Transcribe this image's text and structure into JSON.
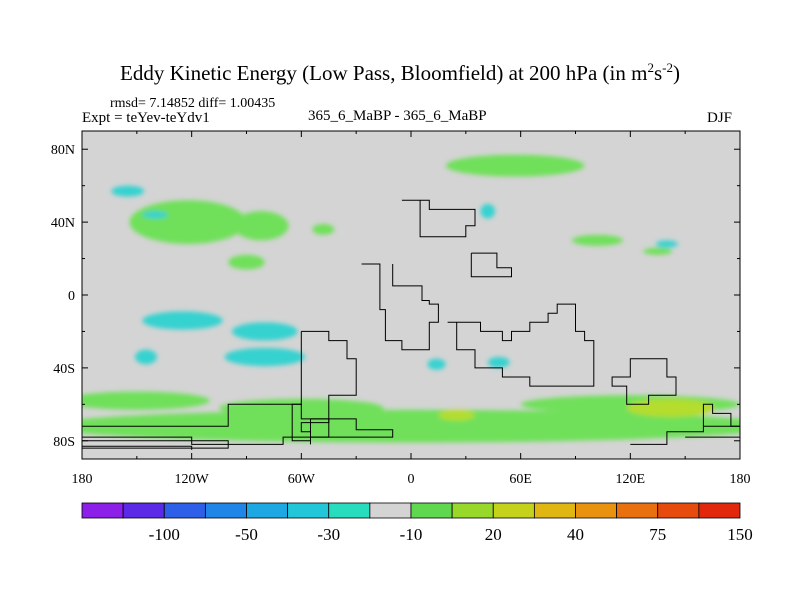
{
  "title": {
    "main": "Eddy Kinetic Energy (Low Pass, Bloomfield) at 200 hPa (in m",
    "sup1": "2",
    "mid": "s",
    "sup2": "-2",
    "end": ")"
  },
  "stats": "rmsd= 7.14852 diff= 1.00435",
  "expt": "Expt = teYev-teYdv1",
  "runs": "365_6_MaBP - 365_6_MaBP",
  "season": "DJF",
  "colors": {
    "background_field": "#d4d4d4",
    "positive_low": "#6fe05a",
    "positive_mid": "#b4dd2f",
    "negative_low": "#35d2d0",
    "coastline": "#000000"
  },
  "chart_data": {
    "type": "heatmap",
    "title": "Eddy Kinetic Energy (Low Pass, Bloomfield) at 200 hPa (in m^2 s^-2)",
    "projection": "cylindrical equidistant",
    "x_range": [
      -180,
      180
    ],
    "y_range": [
      -90,
      90
    ],
    "x_ticks": [
      {
        "value": -180,
        "label": "180"
      },
      {
        "value": -120,
        "label": "120W"
      },
      {
        "value": -60,
        "label": "60W"
      },
      {
        "value": 0,
        "label": "0"
      },
      {
        "value": 60,
        "label": "60E"
      },
      {
        "value": 120,
        "label": "120E"
      },
      {
        "value": 180,
        "label": "180"
      }
    ],
    "y_ticks": [
      {
        "value": 80,
        "label": "80N"
      },
      {
        "value": 40,
        "label": "40N"
      },
      {
        "value": 0,
        "label": "0"
      },
      {
        "value": -40,
        "label": "40S"
      },
      {
        "value": -80,
        "label": "80S"
      }
    ],
    "colorbar": {
      "colors": [
        "#8c1fe8",
        "#5a2ae6",
        "#2e5fe8",
        "#1f86e8",
        "#1ea8e3",
        "#22c6d9",
        "#28ddbd",
        "#d4d4d4",
        "#5fd84f",
        "#98d82b",
        "#c4d21c",
        "#e0b612",
        "#e99210",
        "#e8700e",
        "#e64a0c",
        "#e2280c"
      ],
      "labels": [
        {
          "between": [
            1,
            2
          ],
          "text": "-100"
        },
        {
          "between": [
            3,
            4
          ],
          "text": "-50"
        },
        {
          "between": [
            5,
            6
          ],
          "text": "-30"
        },
        {
          "between": [
            7,
            8
          ],
          "text": "-10"
        },
        {
          "between": [
            9,
            10
          ],
          "text": "20"
        },
        {
          "between": [
            11,
            12
          ],
          "text": "40"
        },
        {
          "between": [
            13,
            14
          ],
          "text": "75"
        },
        {
          "between": [
            15,
            16
          ],
          "text": "150"
        }
      ]
    },
    "regions": [
      {
        "name": "arctic-band-east",
        "level": "positive_low",
        "lon": 57,
        "lat": 71,
        "rlon": 38,
        "rlat": 6
      },
      {
        "name": "north-pacific-band",
        "level": "positive_low",
        "lon": -122,
        "lat": 40,
        "rlon": 32,
        "rlat": 12
      },
      {
        "name": "north-atlantic-green",
        "level": "positive_low",
        "lon": -82,
        "lat": 38,
        "rlon": 15,
        "rlat": 8
      },
      {
        "name": "subtropic-west-blob",
        "level": "positive_low",
        "lon": -90,
        "lat": 18,
        "rlon": 10,
        "rlat": 4
      },
      {
        "name": "europe-north-blob",
        "level": "positive_low",
        "lon": -48,
        "lat": 36,
        "rlon": 6,
        "rlat": 3
      },
      {
        "name": "asia-jet-green",
        "level": "positive_low",
        "lon": 102,
        "lat": 30,
        "rlon": 14,
        "rlat": 3
      },
      {
        "name": "west-pacific-green",
        "level": "positive_low",
        "lon": 135,
        "lat": 24,
        "rlon": 8,
        "rlat": 2
      },
      {
        "name": "antarctic-ring",
        "level": "positive_low",
        "lon": 0,
        "lat": -72,
        "rlon": 200,
        "rlat": 9
      },
      {
        "name": "southern-ocean-west",
        "level": "positive_low",
        "lon": -150,
        "lat": -58,
        "rlon": 40,
        "rlat": 5
      },
      {
        "name": "southern-ocean-mid",
        "level": "positive_low",
        "lon": -60,
        "lat": -62,
        "rlon": 45,
        "rlat": 5
      },
      {
        "name": "southern-ocean-east",
        "level": "positive_low",
        "lon": 120,
        "lat": -60,
        "rlon": 60,
        "rlat": 5
      },
      {
        "name": "indian-ocean-yellow",
        "level": "positive_mid",
        "lon": 142,
        "lat": -62,
        "rlon": 24,
        "rlat": 5
      },
      {
        "name": "south-atlantic-yellow",
        "level": "positive_mid",
        "lon": 25,
        "lat": -66,
        "rlon": 10,
        "rlat": 3
      },
      {
        "name": "north-pacific-cyan",
        "level": "negative_low",
        "lon": -155,
        "lat": 57,
        "rlon": 9,
        "rlat": 3
      },
      {
        "name": "north-pacific-cyan-2",
        "level": "negative_low",
        "lon": -140,
        "lat": 44,
        "rlon": 7,
        "rlat": 2
      },
      {
        "name": "north-atlantic-cyan",
        "level": "negative_low",
        "lon": 42,
        "lat": 46,
        "rlon": 4,
        "rlat": 4
      },
      {
        "name": "asia-cyan",
        "level": "negative_low",
        "lon": 140,
        "lat": 28,
        "rlon": 6,
        "rlat": 2
      },
      {
        "name": "south-pacific-cyan",
        "level": "negative_low",
        "lon": -125,
        "lat": -14,
        "rlon": 22,
        "rlat": 5
      },
      {
        "name": "south-pacific-cyan-2",
        "level": "negative_low",
        "lon": -80,
        "lat": -20,
        "rlon": 18,
        "rlat": 5
      },
      {
        "name": "southern-ocean-cyan",
        "level": "negative_low",
        "lon": -80,
        "lat": -34,
        "rlon": 22,
        "rlat": 5
      },
      {
        "name": "south-atlantic-cyan",
        "level": "negative_low",
        "lon": 48,
        "lat": -37,
        "rlon": 6,
        "rlat": 3
      },
      {
        "name": "south-atlantic-cyan-2",
        "level": "negative_low",
        "lon": 14,
        "lat": -38,
        "rlon": 5,
        "rlat": 3
      },
      {
        "name": "pacific-cyan-small",
        "level": "negative_low",
        "lon": -145,
        "lat": -34,
        "rlon": 6,
        "rlat": 4
      }
    ],
    "coastlines": [
      {
        "name": "north-africa-europe",
        "points": [
          [
            -5,
            52
          ],
          [
            10,
            52
          ],
          [
            10,
            47
          ],
          [
            35,
            47
          ],
          [
            35,
            38
          ],
          [
            30,
            38
          ],
          [
            30,
            32
          ],
          [
            5,
            32
          ],
          [
            5,
            52
          ]
        ]
      },
      {
        "name": "west-africa",
        "points": [
          [
            -27,
            17
          ],
          [
            -17,
            17
          ],
          [
            -17,
            -8
          ],
          [
            -14,
            -8
          ],
          [
            -14,
            -25
          ],
          [
            -5,
            -25
          ],
          [
            -5,
            -30
          ],
          [
            10,
            -30
          ],
          [
            10,
            -15
          ],
          [
            15,
            -15
          ],
          [
            15,
            -5
          ],
          [
            10,
            -5
          ],
          [
            10,
            -3
          ],
          [
            6,
            -3
          ],
          [
            6,
            5
          ],
          [
            -10,
            5
          ],
          [
            -10,
            17
          ]
        ]
      },
      {
        "name": "arabia",
        "points": [
          [
            33,
            23
          ],
          [
            47,
            23
          ],
          [
            47,
            15
          ],
          [
            55,
            15
          ],
          [
            55,
            10
          ],
          [
            33,
            10
          ],
          [
            33,
            23
          ]
        ]
      },
      {
        "name": "south-america",
        "points": [
          [
            -60,
            -20
          ],
          [
            -45,
            -20
          ],
          [
            -45,
            -25
          ],
          [
            -35,
            -25
          ],
          [
            -35,
            -35
          ],
          [
            -30,
            -35
          ],
          [
            -30,
            -55
          ],
          [
            -45,
            -55
          ],
          [
            -45,
            -70
          ],
          [
            -60,
            -70
          ],
          [
            -60,
            -75
          ],
          [
            -55,
            -75
          ],
          [
            -55,
            -82
          ],
          [
            -55,
            -80
          ],
          [
            -65,
            -80
          ],
          [
            -65,
            -60
          ],
          [
            -60,
            -60
          ],
          [
            -60,
            -20
          ]
        ]
      },
      {
        "name": "central-africa-east",
        "points": [
          [
            20,
            -15
          ],
          [
            25,
            -15
          ],
          [
            25,
            -30
          ],
          [
            35,
            -30
          ],
          [
            35,
            -40
          ],
          [
            50,
            -40
          ],
          [
            50,
            -45
          ],
          [
            65,
            -45
          ],
          [
            65,
            -50
          ],
          [
            100,
            -50
          ],
          [
            100,
            -25
          ],
          [
            95,
            -25
          ],
          [
            95,
            -20
          ],
          [
            90,
            -20
          ],
          [
            90,
            -5
          ],
          [
            80,
            -5
          ],
          [
            80,
            -10
          ],
          [
            75,
            -10
          ],
          [
            75,
            -15
          ],
          [
            65,
            -15
          ],
          [
            65,
            -20
          ],
          [
            55,
            -20
          ],
          [
            55,
            -25
          ],
          [
            50,
            -25
          ],
          [
            50,
            -20
          ],
          [
            38,
            -20
          ],
          [
            38,
            -15
          ],
          [
            20,
            -15
          ]
        ]
      },
      {
        "name": "indonesia-australia",
        "points": [
          [
            128,
            -35
          ],
          [
            140,
            -35
          ],
          [
            140,
            -45
          ],
          [
            145,
            -45
          ],
          [
            145,
            -55
          ],
          [
            130,
            -55
          ],
          [
            130,
            -60
          ],
          [
            118,
            -60
          ],
          [
            118,
            -50
          ],
          [
            110,
            -50
          ],
          [
            110,
            -45
          ],
          [
            120,
            -45
          ],
          [
            120,
            -35
          ],
          [
            128,
            -35
          ]
        ]
      },
      {
        "name": "antarctica",
        "points": [
          [
            -180,
            -72
          ],
          [
            -100,
            -72
          ],
          [
            -100,
            -60
          ],
          [
            -60,
            -60
          ],
          [
            -60,
            -68
          ],
          [
            -30,
            -68
          ],
          [
            -30,
            -74
          ],
          [
            -10,
            -74
          ],
          [
            -10,
            -78
          ],
          [
            -70,
            -78
          ],
          [
            -70,
            -82
          ],
          [
            -120,
            -82
          ],
          [
            -120,
            -78
          ],
          [
            -180,
            -78
          ]
        ]
      },
      {
        "name": "antarctica-east",
        "points": [
          [
            120,
            -82
          ],
          [
            140,
            -82
          ],
          [
            140,
            -75
          ],
          [
            160,
            -75
          ],
          [
            160,
            -60
          ],
          [
            165,
            -60
          ],
          [
            165,
            -65
          ],
          [
            175,
            -65
          ],
          [
            175,
            -72
          ],
          [
            180,
            -72
          ],
          [
            180,
            -82
          ]
        ]
      },
      {
        "name": "antarctica-far-east",
        "points": [
          [
            160,
            -72
          ],
          [
            180,
            -72
          ],
          [
            180,
            -78
          ],
          [
            150,
            -78
          ]
        ]
      },
      {
        "name": "antarctic-peninsula",
        "points": [
          [
            -55,
            -68
          ],
          [
            -45,
            -68
          ],
          [
            -45,
            -78
          ],
          [
            -55,
            -78
          ],
          [
            -55,
            -68
          ]
        ]
      },
      {
        "name": "antarctica-coast-lower",
        "points": [
          [
            -180,
            -80
          ],
          [
            -100,
            -80
          ],
          [
            -100,
            -84
          ],
          [
            -180,
            -84
          ]
        ]
      },
      {
        "name": "antarctica-coast-west",
        "points": [
          [
            -180,
            -83
          ],
          [
            -120,
            -83
          ],
          [
            -120,
            -85
          ]
        ]
      }
    ]
  }
}
